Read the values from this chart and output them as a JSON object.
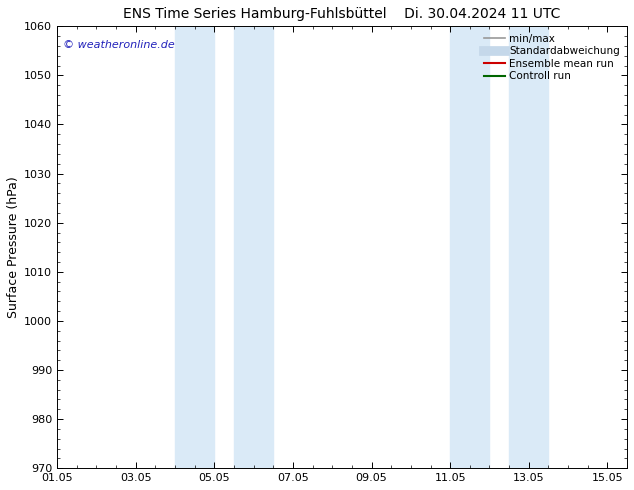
{
  "title_left": "ENS Time Series Hamburg-Fuhlsbüttel",
  "title_right": "Di. 30.04.2024 11 UTC",
  "ylabel": "Surface Pressure (hPa)",
  "ylim": [
    970,
    1060
  ],
  "yticks": [
    970,
    980,
    990,
    1000,
    1010,
    1020,
    1030,
    1040,
    1050,
    1060
  ],
  "xlabel_ticks": [
    "01.05",
    "03.05",
    "05.05",
    "07.05",
    "09.05",
    "11.05",
    "13.05",
    "15.05"
  ],
  "x_tick_positions": [
    0,
    2,
    4,
    6,
    8,
    10,
    12,
    14
  ],
  "xlim": [
    0,
    14.5
  ],
  "watermark": "© weatheronline.de",
  "watermark_color": "#2222bb",
  "background_color": "#ffffff",
  "shade_bands": [
    {
      "x_start": 3.0,
      "x_end": 4.0,
      "color": "#daeaf7"
    },
    {
      "x_start": 4.5,
      "x_end": 5.5,
      "color": "#daeaf7"
    },
    {
      "x_start": 10.0,
      "x_end": 11.0,
      "color": "#daeaf7"
    },
    {
      "x_start": 11.5,
      "x_end": 12.5,
      "color": "#daeaf7"
    }
  ],
  "legend_entries": [
    {
      "label": "min/max",
      "color": "#999999",
      "lw": 1.2,
      "style": "solid"
    },
    {
      "label": "Standardabweichung",
      "color": "#c5d8ea",
      "lw": 7,
      "style": "solid"
    },
    {
      "label": "Ensemble mean run",
      "color": "#cc0000",
      "lw": 1.5,
      "style": "solid"
    },
    {
      "label": "Controll run",
      "color": "#006600",
      "lw": 1.5,
      "style": "solid"
    }
  ],
  "title_fontsize": 10,
  "tick_fontsize": 8,
  "ylabel_fontsize": 9,
  "watermark_fontsize": 8,
  "legend_fontsize": 7.5
}
